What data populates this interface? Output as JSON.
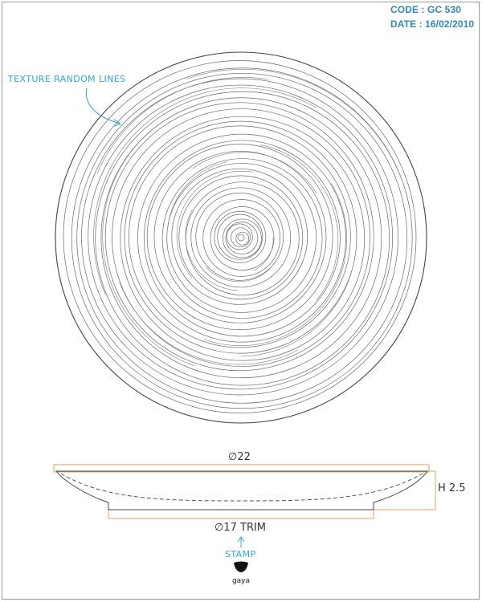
{
  "header": {
    "code": "CODE : GC 530",
    "date": "DATE : 16/02/2010"
  },
  "annotations": {
    "texture_note": "TEXTURE RANDOM LINES",
    "stamp_label": "STAMP",
    "brand_logo_text": "gaya"
  },
  "dimensions": {
    "outer_diameter": "∅22",
    "height": "H 2.5",
    "foot_diameter": "∅17 TRIM"
  },
  "colors": {
    "annotation": "#2ea7df",
    "header": "#2f86c9",
    "dimension_box": "#e8a060",
    "drawing_line": "#555555"
  },
  "icons": [
    "arrow-up-icon",
    "curved-leader-arrow-icon",
    "gaya-logo-icon"
  ]
}
